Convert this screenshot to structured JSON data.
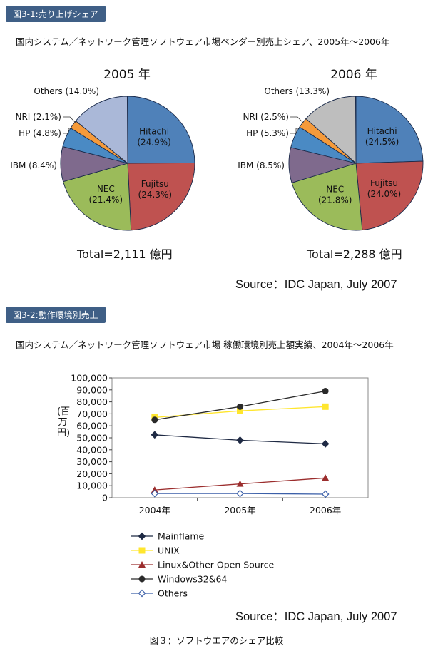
{
  "section1": {
    "badge": "図3-1:売り上げシェア",
    "subtitle": "国内システム／ネットワーク管理ソフトウェア市場ベンダー別売上シェア、2005年～2006年",
    "source": "Source：IDC Japan, July 2007"
  },
  "section2": {
    "badge": "図3-2:動作環境別売上",
    "subtitle": "国内システム／ネットワーク管理ソフトウェア市場 稼働環境別売上額実績、2004年～2006年",
    "source": "Source：IDC Japan, July 2007",
    "ylabel": "(百万円)"
  },
  "caption": "図３：ソフトウエアのシェア比較",
  "colors": {
    "badge": "#3f5f86",
    "hitachi": "#4f81b9",
    "fujitsu": "#bf5250",
    "nec": "#9bbb5a",
    "ibm": "#7f6a8d",
    "hp": "#4a8ac4",
    "nri": "#f59a3a",
    "others2005": "#aab8d8",
    "others2006": "#bebebe"
  },
  "chart_data": [
    {
      "type": "pie",
      "title": "2005 年",
      "total": "Total=2,111 億円",
      "slices": [
        {
          "label": "Hitachi",
          "pct": "(24.9%)",
          "value": 24.9
        },
        {
          "label": "Fujitsu",
          "pct": "(24.3%)",
          "value": 24.3
        },
        {
          "label": "NEC",
          "pct": "(21.4%)",
          "value": 21.4
        },
        {
          "label": "IBM (8.4%)",
          "value": 8.4
        },
        {
          "label": "HP (4.8%)",
          "value": 4.8
        },
        {
          "label": "NRI (2.1%)",
          "value": 2.1
        },
        {
          "label": "Others (14.0%)",
          "value": 14.0
        }
      ]
    },
    {
      "type": "pie",
      "title": "2006 年",
      "total": "Total=2,288 億円",
      "slices": [
        {
          "label": "Hitachi",
          "pct": "(24.5%)",
          "value": 24.5
        },
        {
          "label": "Fujitsu",
          "pct": "(24.0%)",
          "value": 24.0
        },
        {
          "label": "NEC",
          "pct": "(21.8%)",
          "value": 21.8
        },
        {
          "label": "IBM (8.5%)",
          "value": 8.5
        },
        {
          "label": "HP (5.3%)",
          "value": 5.3
        },
        {
          "label": "NRI (2.5%)",
          "value": 2.5
        },
        {
          "label": "Others (13.3%)",
          "value": 13.3
        }
      ]
    },
    {
      "type": "line",
      "categories": [
        "2004年",
        "2005年",
        "2006年"
      ],
      "ylim": [
        0,
        100000
      ],
      "yticks": [
        "0",
        "10,000",
        "20,000",
        "30,000",
        "40,000",
        "50,000",
        "60,000",
        "70,000",
        "80,000",
        "90,000",
        "100,000"
      ],
      "ylabel": "(百万円)",
      "grid": false,
      "legend": "bottom",
      "series": [
        {
          "name": "Mainflame",
          "values": [
            52500,
            48000,
            45000
          ],
          "color": "#1f2a44",
          "marker": "diamond"
        },
        {
          "name": "UNIX",
          "values": [
            67000,
            72500,
            76000
          ],
          "color": "#ffe62e",
          "marker": "square"
        },
        {
          "name": "Linux&Other Open Source",
          "values": [
            6500,
            11500,
            16500
          ],
          "color": "#9b2d2d",
          "marker": "triangle"
        },
        {
          "name": "Windows32&64",
          "values": [
            65000,
            76000,
            89000
          ],
          "color": "#2a2a2a",
          "marker": "circle"
        },
        {
          "name": "Others",
          "values": [
            3500,
            3500,
            3000
          ],
          "color": "#3b5fa8",
          "marker": "open-diamond"
        }
      ]
    }
  ]
}
